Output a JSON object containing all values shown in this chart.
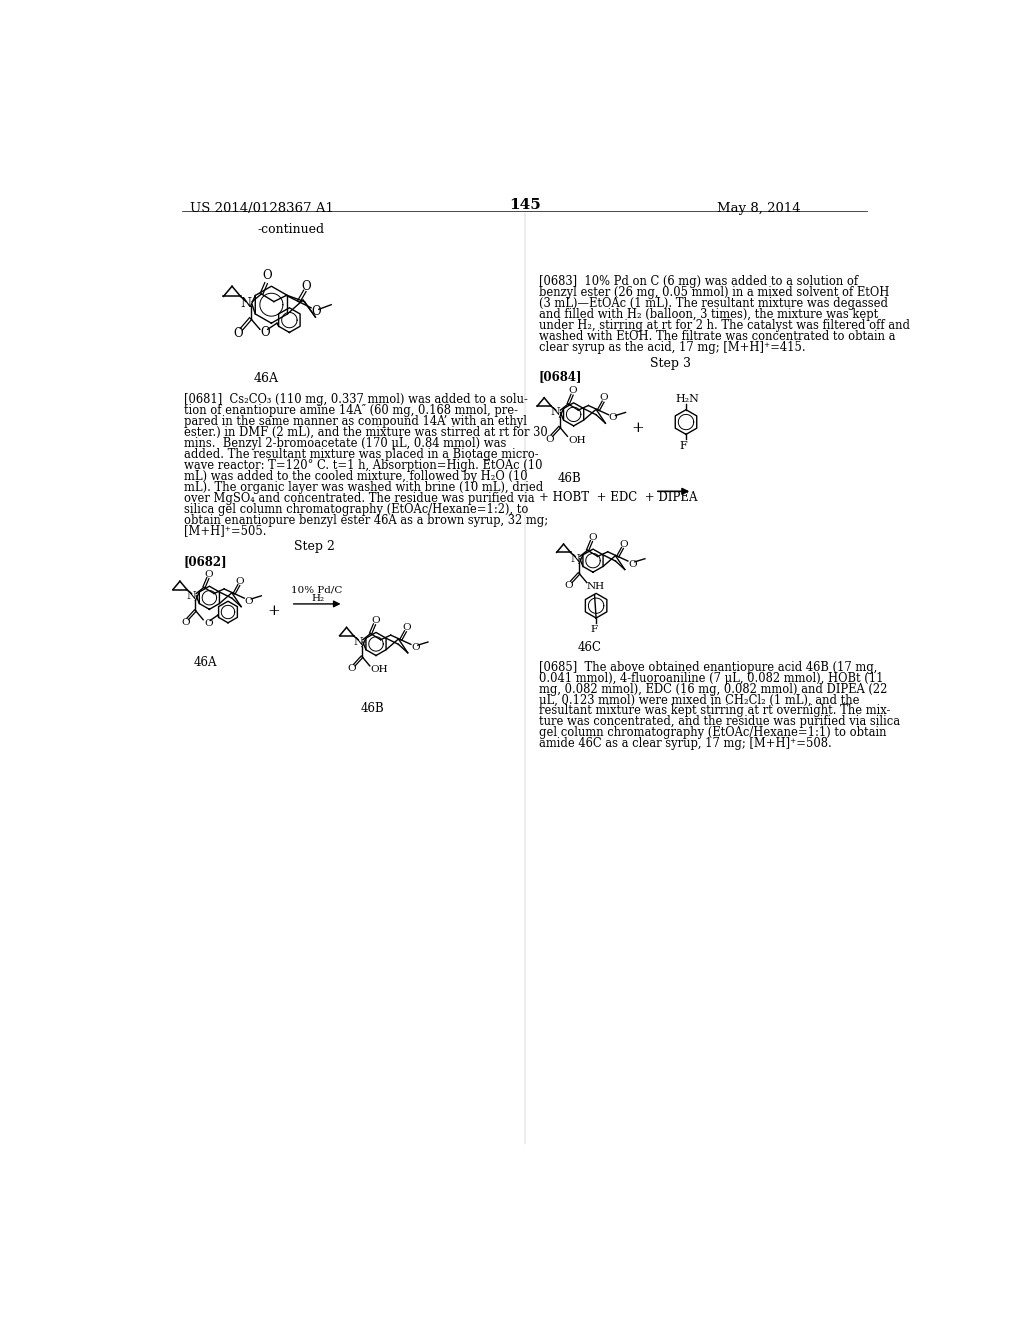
{
  "page_number": "145",
  "header_left": "US 2014/0128367 A1",
  "header_right": "May 8, 2014",
  "background_color": "#ffffff",
  "continued_label": "-continued",
  "step2_label": "Step 2",
  "step3_label": "Step 3",
  "para_0681_lines": [
    "[0681]  Cs₂CO₃ (110 mg, 0.337 mmol) was added to a solu-",
    "tion of enantiopure amine 14A″ (60 mg, 0.168 mmol, pre-",
    "pared in the same manner as compound 14A’ with an ethyl",
    "ester.) in DMF (2 mL), and the mixture was stirred at rt for 30",
    "mins.  Benzyl 2-bromoacetate (170 μL, 0.84 mmol) was",
    "added. The resultant mixture was placed in a Biotage micro-",
    "wave reactor: T=120° C. t=1 h, Absorption=High. EtOAc (10",
    "mL) was added to the cooled mixture, followed by H₂O (10",
    "mL). The organic layer was washed with brine (10 mL), dried",
    "over MgSO₄ and concentrated. The residue was purified via",
    "silica gel column chromatography (EtOAc/Hexane=1:2), to",
    "obtain enantiopure benzyl ester 46A as a brown syrup, 32 mg;",
    "[M+H]⁺=505."
  ],
  "para_0683_lines": [
    "[0683]  10% Pd on C (6 mg) was added to a solution of",
    "benzyl ester (26 mg, 0.05 mmol) in a mixed solvent of EtOH",
    "(3 mL)—EtOAc (1 mL). The resultant mixture was degassed",
    "and filled with H₂ (balloon, 3 times), the mixture was kept",
    "under H₂, stirring at rt for 2 h. The catalyst was filtered off and",
    "washed with EtOH. The filtrate was concentrated to obtain a",
    "clear syrup as the acid, 17 mg; [M+H]⁺=415."
  ],
  "para_0685_lines": [
    "[0685]  The above obtained enantiopure acid 46B (17 mg,",
    "0.041 mmol), 4-fluoroaniline (7 μL, 0.082 mmol), HOBt (11",
    "mg, 0.082 mmol), EDC (16 mg, 0.082 mmol) and DIPEA (22",
    "μL, 0.123 mmol) were mixed in CH₂Cl₂ (1 mL), and the",
    "resultant mixture was kept stirring at rt overnight. The mix-",
    "ture was concentrated, and the residue was purified via silica",
    "gel column chromatography (EtOAc/Hexane=1:1) to obtain",
    "amide 46C as a clear syrup, 17 mg; [M+H]⁺=508."
  ]
}
